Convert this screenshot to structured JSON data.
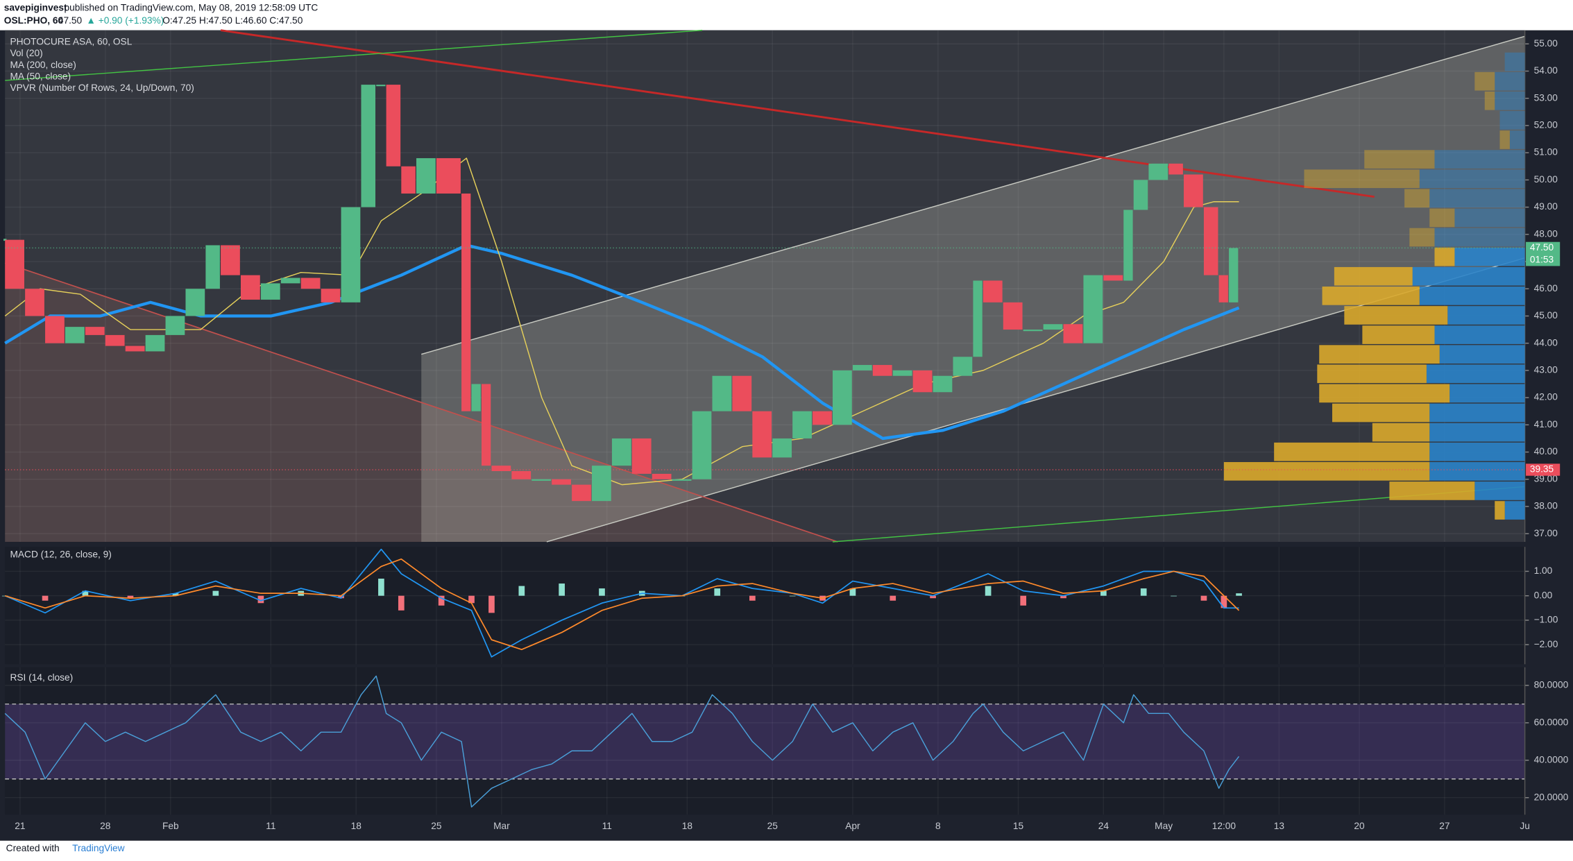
{
  "header": {
    "author": "savepiginvest",
    "published": "published on TradingView.com, May 08, 2019 12:58:09 UTC",
    "symbol": "OSL:PHO, 60",
    "last": "47.50",
    "change": "▲ +0.90 (+1.93%)",
    "ohlc": "O:47.25 H:47.50 L:46.60 C:47.50"
  },
  "footer": {
    "created": "Created with",
    "brand": "TradingView"
  },
  "chart_data": [
    {
      "type": "price",
      "legend": [
        "PHOTOCURE ASA, 60, OSL",
        "Vol (20)",
        "MA (200, close)",
        "MA (50, close)",
        "VPVR (Number Of Rows, 24, Up/Down, 70)"
      ],
      "xlim": [
        0,
        303
      ],
      "xticks": [
        {
          "value": 3,
          "label": "21"
        },
        {
          "value": 20,
          "label": "28"
        },
        {
          "value": 33,
          "label": "Feb"
        },
        {
          "value": 53,
          "label": "11"
        },
        {
          "value": 70,
          "label": "18"
        },
        {
          "value": 86,
          "label": "25"
        },
        {
          "value": 99,
          "label": "Mar"
        },
        {
          "value": 120,
          "label": "11"
        },
        {
          "value": 136,
          "label": "18"
        },
        {
          "value": 153,
          "label": "25"
        },
        {
          "value": 169,
          "label": "Apr"
        },
        {
          "value": 186,
          "label": "8"
        },
        {
          "value": 202,
          "label": "15"
        },
        {
          "value": 219,
          "label": "24"
        },
        {
          "value": 231,
          "label": "May"
        },
        {
          "value": 243,
          "label": "12:00"
        },
        {
          "value": 254,
          "label": "13"
        },
        {
          "value": 270,
          "label": "20"
        },
        {
          "value": 287,
          "label": "27"
        },
        {
          "value": 303,
          "label": "Ju"
        }
      ],
      "ylim": [
        36.7,
        55.5
      ],
      "yticks": [
        {
          "value": 37,
          "label": "37.00"
        },
        {
          "value": 38,
          "label": "38.00"
        },
        {
          "value": 39,
          "label": "39.00"
        },
        {
          "value": 40,
          "label": "40.00"
        },
        {
          "value": 41,
          "label": "41.00"
        },
        {
          "value": 42,
          "label": "42.00"
        },
        {
          "value": 43,
          "label": "43.00"
        },
        {
          "value": 44,
          "label": "44.00"
        },
        {
          "value": 45,
          "label": "45.00"
        },
        {
          "value": 46,
          "label": "46.00"
        },
        {
          "value": 47,
          "label": "47.00"
        },
        {
          "value": 48,
          "label": "48.00"
        },
        {
          "value": 49,
          "label": "49.00"
        },
        {
          "value": 50,
          "label": "50.00"
        },
        {
          "value": 51,
          "label": "51.00"
        },
        {
          "value": 52,
          "label": "52.00"
        },
        {
          "value": 53,
          "label": "53.00"
        },
        {
          "value": 54,
          "label": "54.00"
        },
        {
          "value": 55,
          "label": "55.00"
        }
      ],
      "price": {
        "up_color": "#53b987",
        "down_color": "#eb4d5c",
        "x": [
          0,
          4,
          8,
          12,
          16,
          20,
          24,
          28,
          32,
          36,
          40,
          43,
          47,
          51,
          55,
          59,
          63,
          67,
          71,
          74,
          76,
          79,
          82,
          86,
          91,
          93,
          95,
          97,
          101,
          105,
          109,
          113,
          117,
          121,
          125,
          129,
          133,
          137,
          141,
          145,
          149,
          153,
          157,
          161,
          165,
          169,
          173,
          177,
          181,
          185,
          189,
          193,
          195,
          199,
          203,
          207,
          211,
          215,
          219,
          223,
          225,
          228,
          232,
          235,
          239,
          242,
          244,
          246
        ],
        "values": [
          47.8,
          46.0,
          45.0,
          44.0,
          44.6,
          44.3,
          43.9,
          43.7,
          44.3,
          45.0,
          46.0,
          47.6,
          46.5,
          45.6,
          46.2,
          46.4,
          46.0,
          45.5,
          49.0,
          53.5,
          53.5,
          50.5,
          49.5,
          50.8,
          49.5,
          41.5,
          42.5,
          39.5,
          39.3,
          39.0,
          39.0,
          38.8,
          38.2,
          39.5,
          40.5,
          39.2,
          39.0,
          39.0,
          41.5,
          42.8,
          41.5,
          39.8,
          40.5,
          41.5,
          41.0,
          43.0,
          43.2,
          42.8,
          43.0,
          42.2,
          42.8,
          43.5,
          46.3,
          45.5,
          44.5,
          44.5,
          44.7,
          44.0,
          46.5,
          46.3,
          48.9,
          50.0,
          50.6,
          50.2,
          49.0,
          46.5,
          45.5,
          47.5
        ]
      },
      "series": [
        {
          "color": "#2196f3",
          "width": 3,
          "x": [
            0,
            9,
            19,
            29,
            39,
            53,
            65,
            79,
            92,
            99,
            113,
            127,
            139,
            151,
            163,
            175,
            187,
            199,
            211,
            223,
            235,
            246
          ],
          "values": [
            44.0,
            45.0,
            45.0,
            45.5,
            45.0,
            45.0,
            45.5,
            46.5,
            47.6,
            47.3,
            46.5,
            45.5,
            44.6,
            43.5,
            41.8,
            40.5,
            40.8,
            41.5,
            42.5,
            43.5,
            44.5,
            45.3
          ]
        },
        {
          "color": "#e6d05a",
          "width": 1,
          "x": [
            0,
            7,
            15,
            25,
            39,
            49,
            59,
            69,
            75,
            83,
            92,
            99,
            107,
            113,
            123,
            135,
            147,
            159,
            171,
            183,
            195,
            207,
            215,
            223,
            231,
            237,
            241,
            246
          ],
          "values": [
            45.0,
            46.0,
            45.8,
            44.5,
            44.5,
            46.0,
            46.6,
            46.5,
            48.5,
            49.5,
            50.8,
            47.0,
            42.0,
            39.5,
            38.8,
            39.0,
            40.2,
            40.5,
            41.5,
            42.5,
            43.0,
            44.0,
            45.0,
            45.5,
            47.0,
            49.0,
            49.2,
            49.2
          ]
        }
      ],
      "last_price": {
        "value": 47.5,
        "label": "47.50",
        "countdown": "01:53",
        "color": "#53b987"
      },
      "level": {
        "value": 39.35,
        "label": "39.35",
        "color": "#eb4d5c"
      },
      "vpvr": {
        "range": [
          37.5,
          54.7
        ],
        "up_color": "#d9a92b",
        "down_color": "#2a83c9",
        "up": [
          10,
          85,
          205,
          155,
          57,
          97,
          130,
          109,
          120,
          72,
          103,
          97,
          78,
          20,
          25,
          25,
          25,
          115,
          70,
          10,
          0,
          10,
          20,
          0
        ],
        "down": [
          20,
          50,
          95,
          95,
          95,
          95,
          75,
          98,
          85,
          90,
          77,
          105,
          112,
          70,
          90,
          70,
          95,
          105,
          90,
          15,
          25,
          30,
          30,
          20
        ]
      }
    },
    {
      "type": "macd",
      "title": "MACD (12, 26, close, 9)",
      "xlim": [
        0,
        303
      ],
      "ylim": [
        -2.8,
        2.0
      ],
      "yticks": [
        {
          "value": 1,
          "label": "1.00"
        },
        {
          "value": 0,
          "label": "0.00"
        },
        {
          "value": -1,
          "label": "−1.00"
        },
        {
          "value": -2,
          "label": "−2.00"
        }
      ],
      "x": [
        0,
        8,
        16,
        25,
        34,
        42,
        51,
        59,
        67,
        75,
        79,
        87,
        93,
        97,
        103,
        111,
        119,
        127,
        135,
        142,
        149,
        157,
        163,
        169,
        177,
        185,
        196,
        203,
        211,
        219,
        227,
        233,
        239,
        243,
        246
      ],
      "macd": {
        "color": "#2196f3",
        "values": [
          0.0,
          -0.7,
          0.2,
          -0.2,
          0.1,
          0.6,
          -0.2,
          0.3,
          -0.1,
          1.9,
          0.9,
          -0.1,
          -0.6,
          -2.5,
          -1.8,
          -1.0,
          -0.3,
          0.1,
          0.0,
          0.7,
          0.3,
          0.1,
          -0.3,
          0.6,
          0.3,
          0.0,
          0.9,
          0.2,
          0.0,
          0.4,
          1.0,
          1.0,
          0.6,
          -0.5,
          -0.5
        ]
      },
      "signal": {
        "color": "#ff8a2b",
        "values": [
          0.0,
          -0.5,
          0.0,
          -0.1,
          0.0,
          0.4,
          0.1,
          0.1,
          0.0,
          1.2,
          1.5,
          0.3,
          -0.3,
          -1.8,
          -2.2,
          -1.5,
          -0.6,
          -0.1,
          0.0,
          0.4,
          0.5,
          0.1,
          -0.1,
          0.3,
          0.5,
          0.1,
          0.5,
          0.6,
          0.1,
          0.2,
          0.7,
          1.0,
          0.8,
          0.0,
          -0.6
        ]
      },
      "histogram": {
        "up_color": "#8fe0cf",
        "down_color": "#f2707a",
        "values": [
          0,
          -0.2,
          0.2,
          -0.1,
          0.1,
          0.2,
          -0.3,
          0.2,
          -0.1,
          0.7,
          -0.6,
          -0.4,
          -0.3,
          -0.7,
          0.4,
          0.5,
          0.3,
          0.2,
          0,
          0.3,
          -0.2,
          0,
          -0.2,
          0.3,
          -0.2,
          -0.1,
          0.4,
          -0.4,
          -0.1,
          0.2,
          0.3,
          0,
          -0.2,
          -0.5,
          0.1
        ]
      }
    },
    {
      "type": "rsi",
      "title": "RSI (14, close)",
      "xlim": [
        0,
        303
      ],
      "ylim": [
        10.9,
        89.7
      ],
      "band": [
        30,
        70
      ],
      "color": "#4a9fd8",
      "yticks": [
        {
          "value": 80,
          "label": "80.0000"
        },
        {
          "value": 60,
          "label": "60.0000"
        },
        {
          "value": 40,
          "label": "40.0000"
        },
        {
          "value": 20,
          "label": "20.0000"
        }
      ],
      "x": [
        0,
        4,
        8,
        12,
        16,
        20,
        24,
        28,
        32,
        36,
        40,
        42,
        47,
        51,
        55,
        59,
        63,
        67,
        71,
        74,
        76,
        79,
        83,
        87,
        91,
        93,
        97,
        101,
        105,
        109,
        113,
        117,
        121,
        125,
        129,
        133,
        137,
        141,
        145,
        149,
        153,
        157,
        161,
        165,
        169,
        173,
        177,
        181,
        185,
        189,
        193,
        195,
        199,
        203,
        207,
        211,
        215,
        219,
        223,
        225,
        228,
        232,
        235,
        239,
        242,
        244,
        246
      ],
      "values": [
        65,
        55,
        30,
        45,
        60,
        50,
        55,
        50,
        55,
        60,
        70,
        75,
        55,
        50,
        55,
        45,
        55,
        55,
        75,
        85,
        65,
        60,
        40,
        55,
        50,
        15,
        25,
        30,
        35,
        38,
        45,
        45,
        55,
        65,
        50,
        50,
        55,
        75,
        65,
        50,
        40,
        50,
        70,
        55,
        60,
        45,
        55,
        60,
        40,
        50,
        65,
        70,
        55,
        45,
        50,
        55,
        40,
        70,
        60,
        75,
        65,
        65,
        55,
        45,
        25,
        35,
        42
      ]
    }
  ]
}
